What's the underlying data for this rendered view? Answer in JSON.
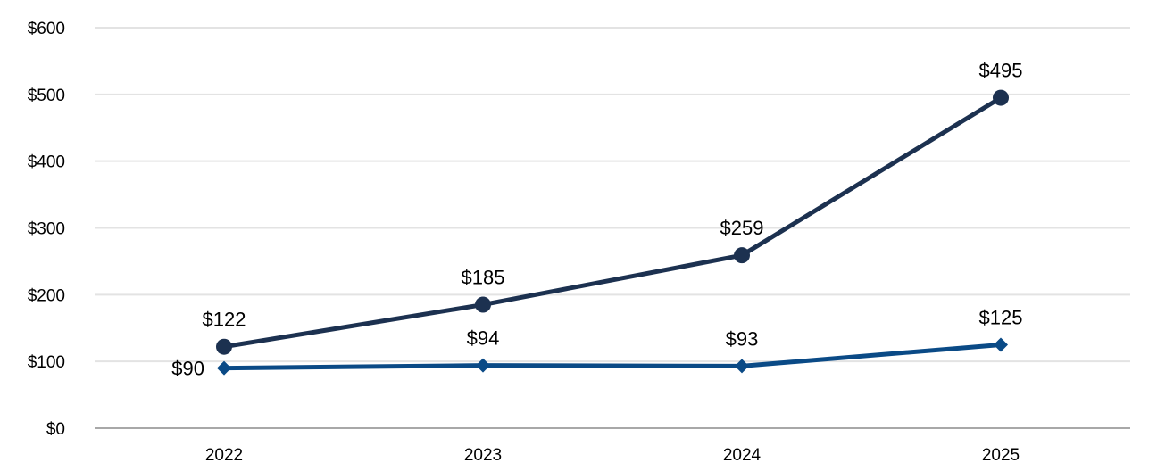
{
  "chart_data": {
    "type": "line",
    "categories": [
      "2022",
      "2023",
      "2024",
      "2025"
    ],
    "ylim": [
      0,
      600
    ],
    "yticks": [
      0,
      100,
      200,
      300,
      400,
      500,
      600
    ],
    "ytick_labels": [
      "$0",
      "$100",
      "$200",
      "$300",
      "$400",
      "$500",
      "$600"
    ],
    "grid": "horizontal",
    "series": [
      {
        "values": [
          122,
          185,
          259,
          495
        ],
        "labels": [
          "$122",
          "$185",
          "$259",
          "$495"
        ],
        "color": "#1c3150",
        "marker": "circle"
      },
      {
        "values": [
          90,
          94,
          93,
          125
        ],
        "labels": [
          "$90",
          "$94",
          "$93",
          "$125"
        ],
        "color": "#0a4a86",
        "marker": "diamond"
      }
    ]
  }
}
